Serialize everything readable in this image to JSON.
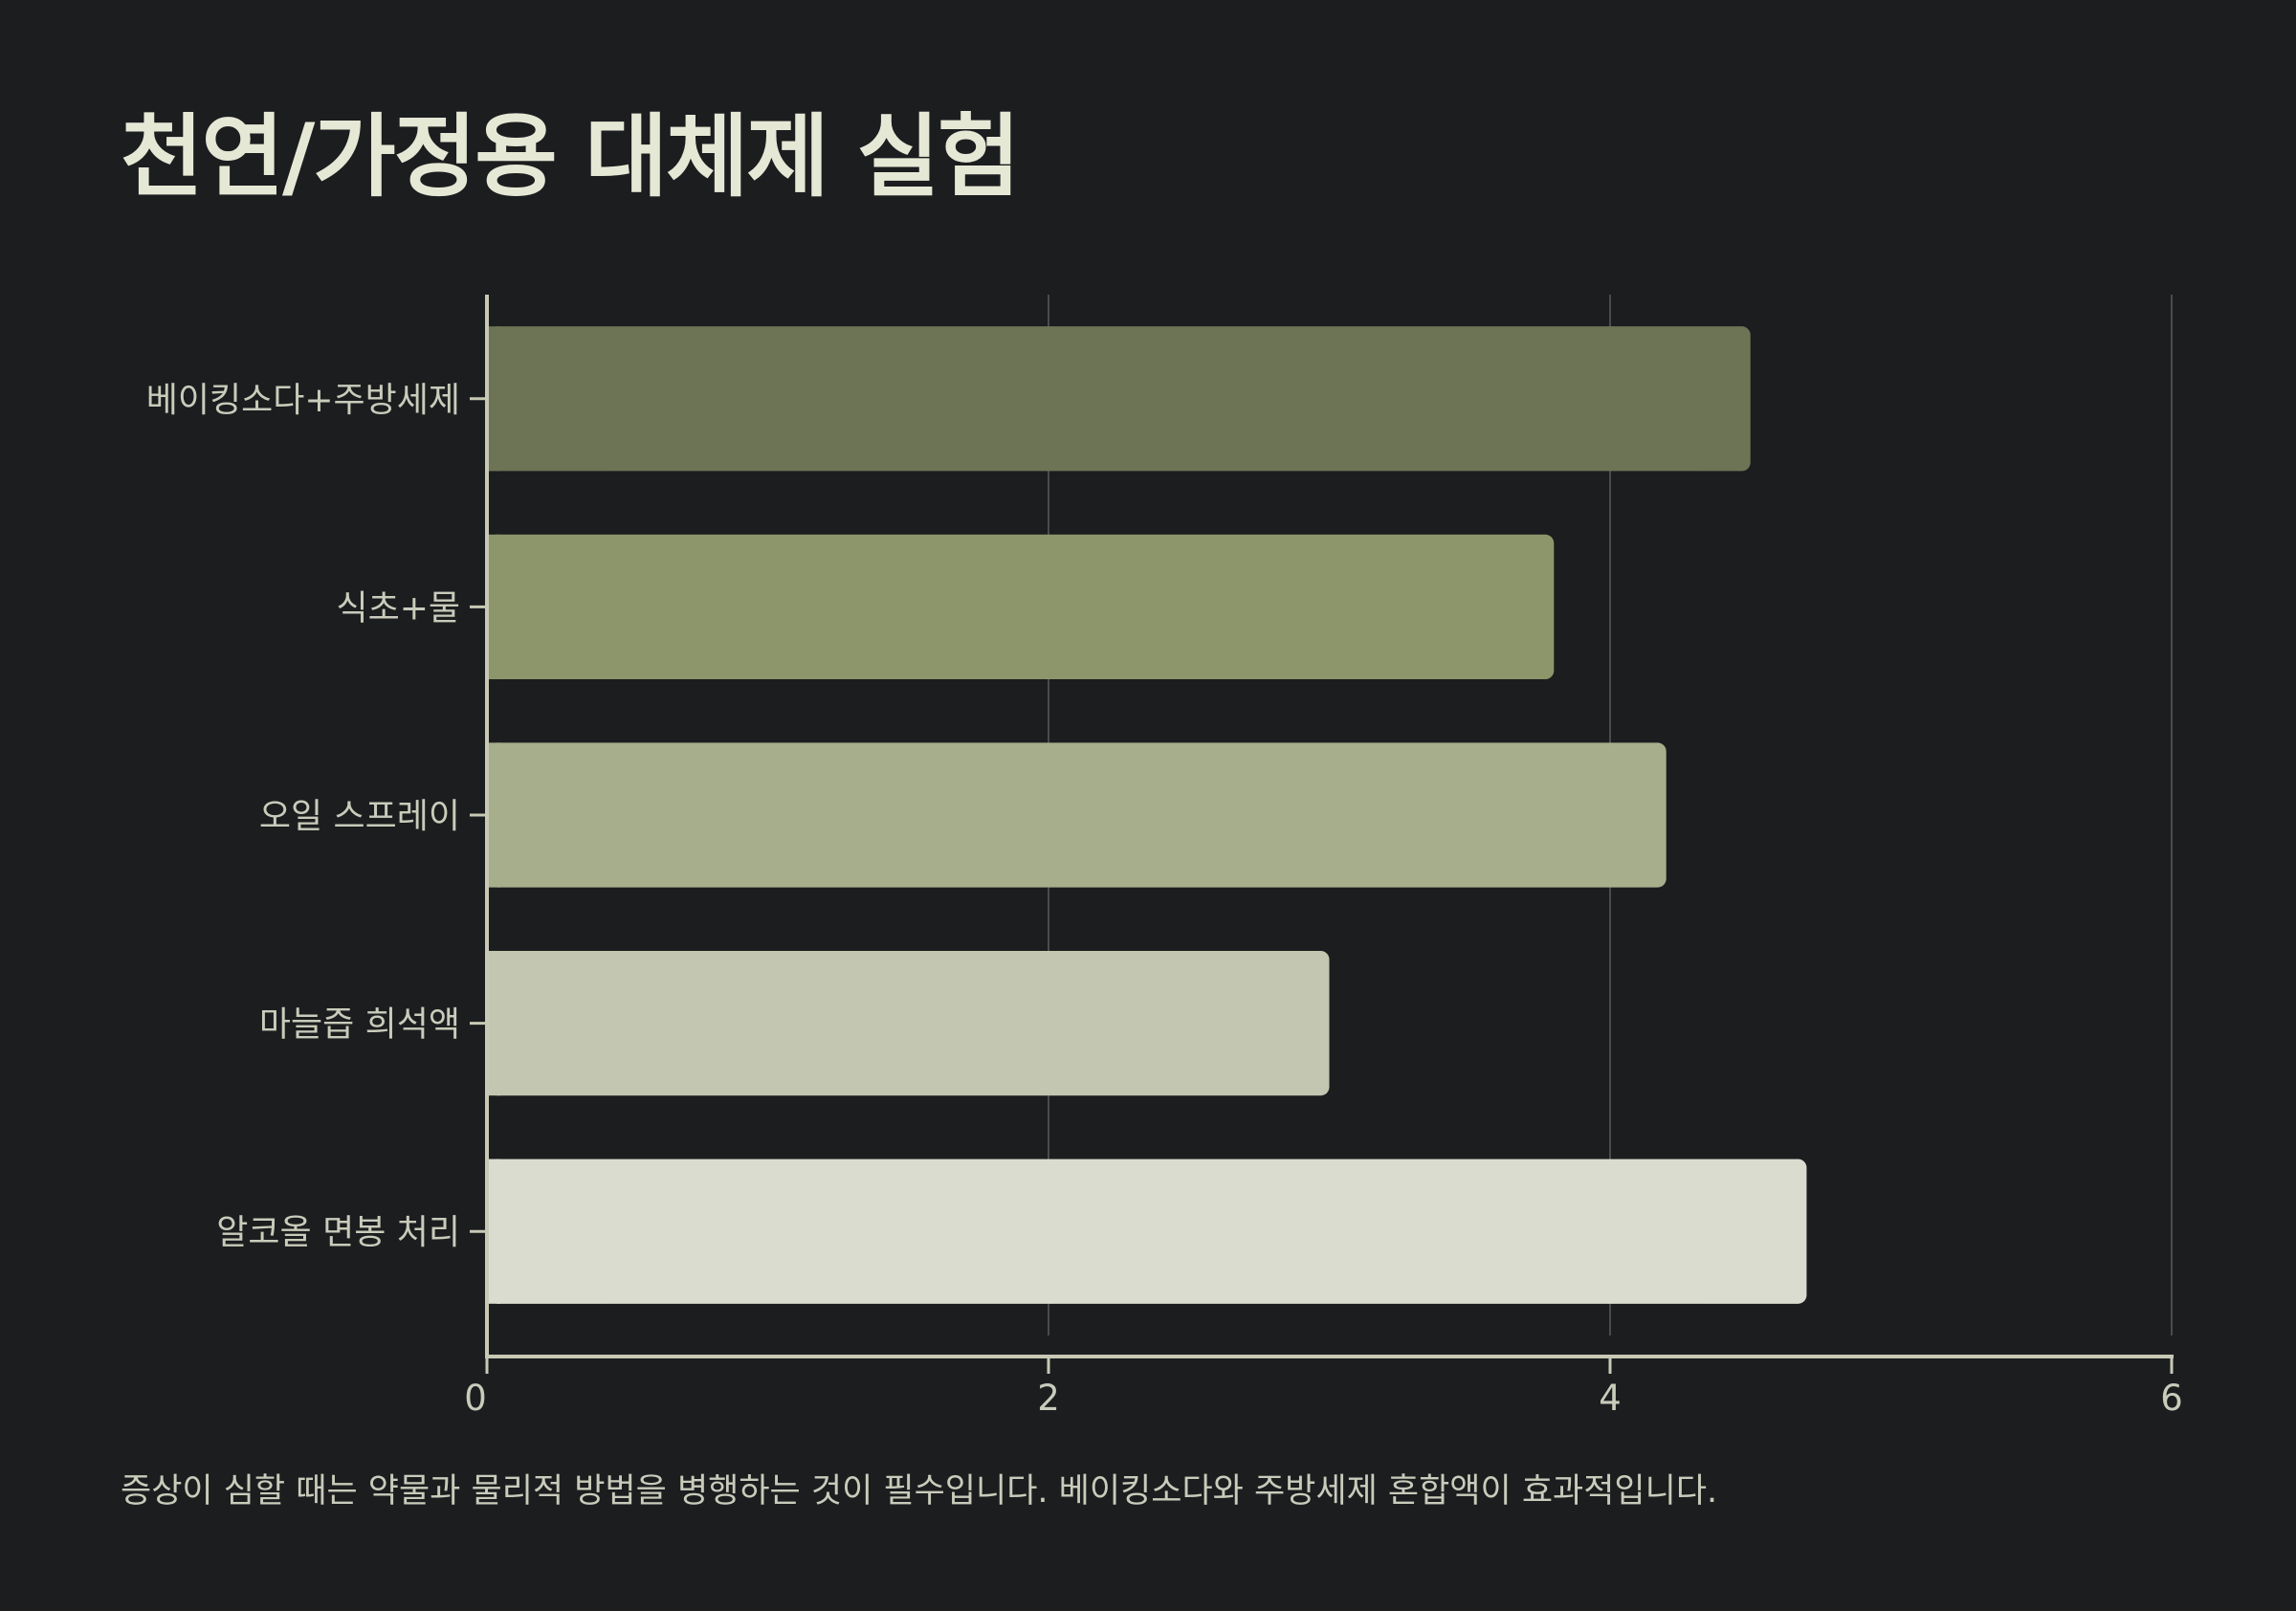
{
  "chart_data": {
    "type": "bar",
    "orientation": "horizontal",
    "title": "천연/가정용 대체제 실험",
    "xlabel": "",
    "ylabel": "",
    "categories": [
      "베이킹소다+주방세제",
      "식초+물",
      "오일 스프레이",
      "마늘즙 희석액",
      "알코올 면봉 처리"
    ],
    "values": [
      4.5,
      3.8,
      4.2,
      3.0,
      4.7
    ],
    "xlim": [
      0,
      6
    ],
    "xticks": [
      0,
      2,
      4,
      6
    ],
    "grid": "vertical",
    "legend": "none",
    "bar_colors": [
      "#6d7455",
      "#8d966b",
      "#a7ae8c",
      "#c3c6b0",
      "#dadccf"
    ],
    "annotation": "증상이 심할 때는 약물과 물리적 방법을 병행하는 것이 필수입니다. 베이킹소다와 주방세제 혼합액이 효과적입니다."
  },
  "colors": {
    "background": "#1c1d1f",
    "axis": "#c8c9b5",
    "grid": "#4a4b4d",
    "tick_text": "#c9cbbb",
    "title": "#e6e8d6"
  }
}
